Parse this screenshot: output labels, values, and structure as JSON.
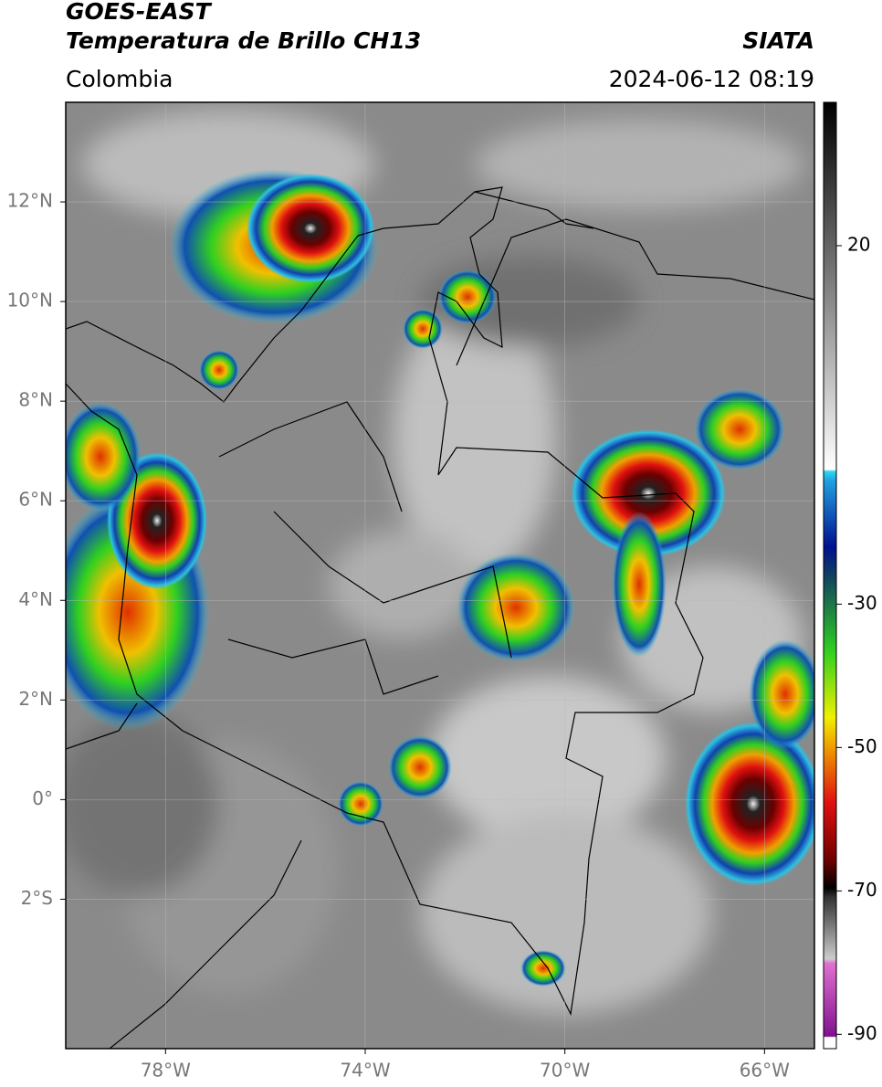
{
  "header": {
    "title": "GOES-EAST",
    "subtitle": "Temperatura de Brillo CH13",
    "region": "Colombia",
    "source": "SIATA",
    "timestamp": "2024-06-12 08:19"
  },
  "map": {
    "xlim": [
      -80,
      -65
    ],
    "ylim": [
      -5,
      14
    ],
    "xticks": [
      {
        "value": -78,
        "label": "78°W"
      },
      {
        "value": -74,
        "label": "74°W"
      },
      {
        "value": -70,
        "label": "70°W"
      },
      {
        "value": -66,
        "label": "66°W"
      }
    ],
    "yticks": [
      {
        "value": 12,
        "label": "12°N"
      },
      {
        "value": 10,
        "label": "10°N"
      },
      {
        "value": 8,
        "label": "8°N"
      },
      {
        "value": 6,
        "label": "6°N"
      },
      {
        "value": 4,
        "label": "4°N"
      },
      {
        "value": 2,
        "label": "2°N"
      },
      {
        "value": 0,
        "label": "0°"
      },
      {
        "value": -2,
        "label": "2°S"
      }
    ],
    "grid": true
  },
  "colorbar": {
    "lim": [
      -92,
      40
    ],
    "ticks": [
      20,
      -30,
      -50,
      -70,
      -90
    ]
  }
}
